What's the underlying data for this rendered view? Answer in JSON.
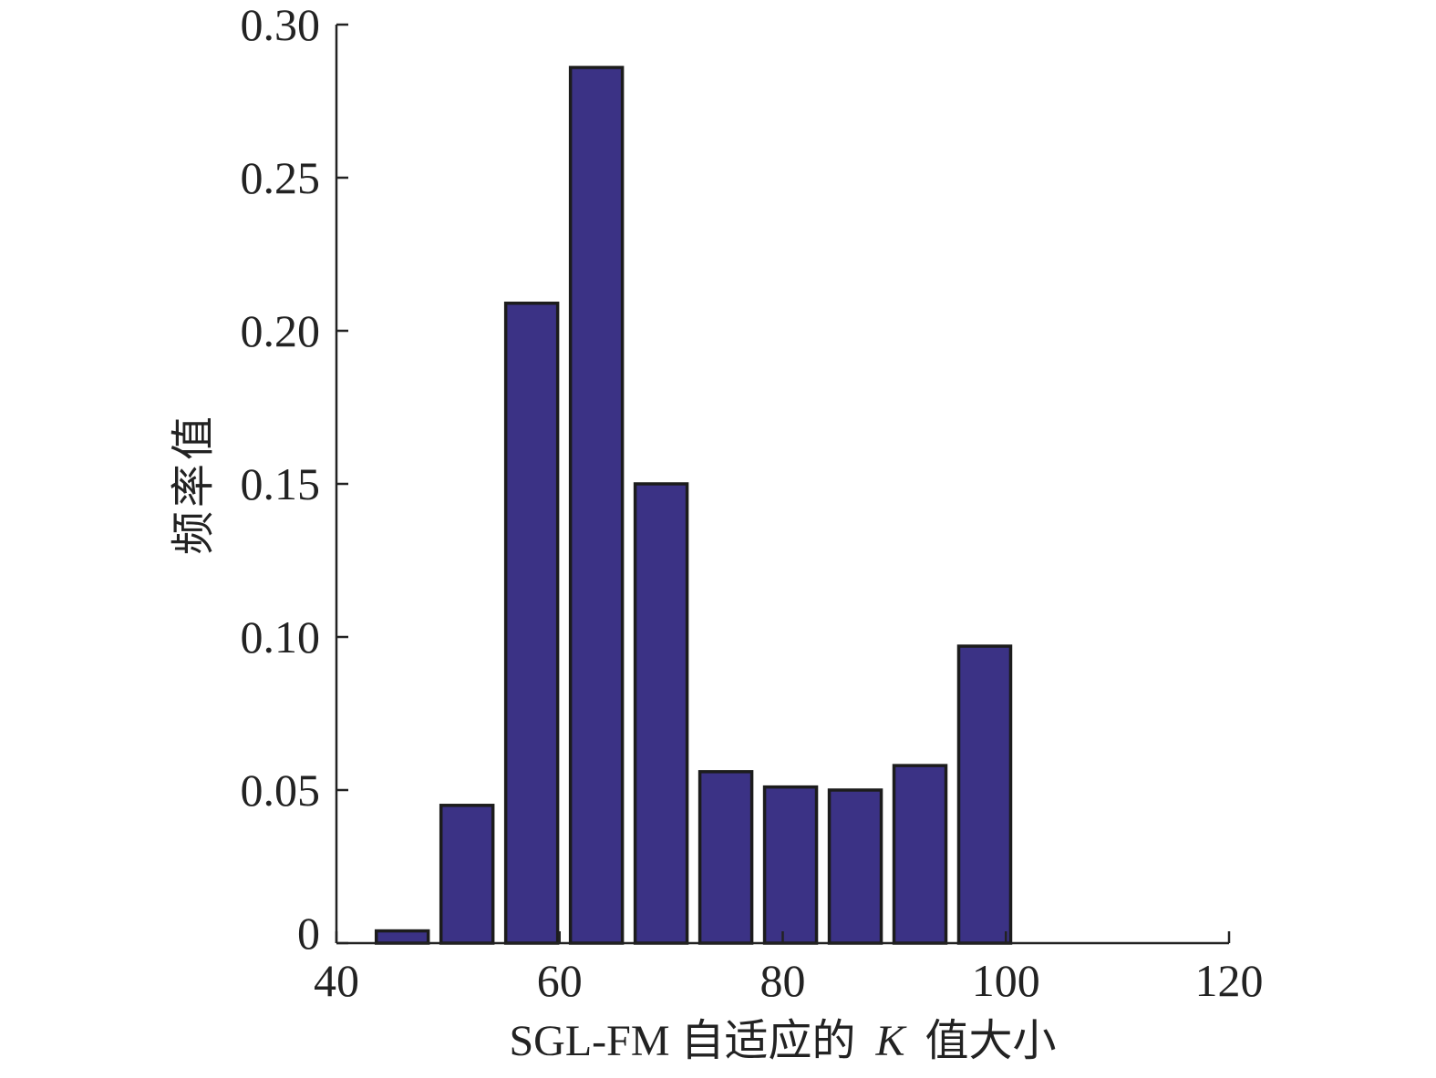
{
  "chart_data": {
    "type": "bar",
    "title": "",
    "xlabel_prefix": "SGL-FM 自适应的",
    "xlabel_var": "K",
    "xlabel_suffix": "值大小",
    "ylabel": "频率值",
    "xlim": [
      40,
      120
    ],
    "ylim": [
      0,
      0.3
    ],
    "xticks": [
      40,
      60,
      80,
      100,
      120
    ],
    "xtick_labels": [
      "40",
      "60",
      "80",
      "100",
      "120"
    ],
    "yticks": [
      0,
      0.05,
      0.1,
      0.15,
      0.2,
      0.25,
      0.3
    ],
    "ytick_labels": [
      "0",
      "0.05",
      "0.10",
      "0.15",
      "0.20",
      "0.25",
      "0.30"
    ],
    "bin_width": 5.8,
    "x": [
      45.9,
      51.7,
      57.5,
      63.3,
      69.1,
      74.9,
      80.7,
      86.5,
      92.3,
      98.1
    ],
    "values": [
      0.004,
      0.045,
      0.209,
      0.286,
      0.15,
      0.056,
      0.051,
      0.05,
      0.058,
      0.097
    ],
    "bar_color": "#3b3285",
    "edge_color": "#1c1c1c",
    "grid": false,
    "legend": "none"
  }
}
